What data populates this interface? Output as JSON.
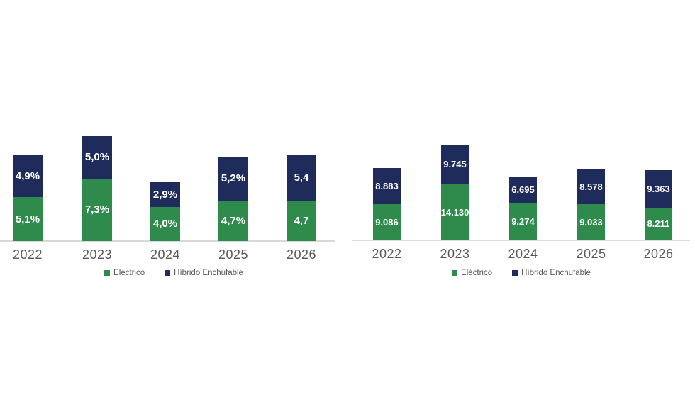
{
  "colors": {
    "electric_green": "#2E8B4C",
    "hybrid_navy": "#1F2C5B",
    "axis_line": "#D9D9D9",
    "axis_text": "#595959",
    "bar_label_text": "#FFFFFF"
  },
  "chart_data": [
    {
      "id": "left-percent-chart",
      "type": "bar",
      "stacked": true,
      "title": "",
      "categories": [
        "2022",
        "2023",
        "2024",
        "2025",
        "2026"
      ],
      "series": [
        {
          "name": "Eléctrico",
          "color": "#2E8B4C",
          "values": [
            5.1,
            7.3,
            4.0,
            4.7,
            4.7
          ],
          "data_labels": [
            "5,1%",
            "7,3%",
            "4,0%",
            "4,7%",
            "4,7"
          ]
        },
        {
          "name": "Híbrido Enchufable",
          "color": "#1F2C5B",
          "values": [
            4.9,
            5.0,
            2.9,
            5.2,
            5.4
          ],
          "data_labels": [
            "4,9%",
            "5,0%",
            "2,9%",
            "5,2%",
            "5,4"
          ]
        }
      ],
      "totals": [
        10.0,
        12.3,
        6.9,
        9.9,
        10.1
      ],
      "legend": {
        "position": "bottom",
        "labels": [
          "Eléctrico",
          "Híbrido Enchufable"
        ]
      },
      "axes": {
        "x_ticks": [
          "2022",
          "2023",
          "2024",
          "2025",
          "2026"
        ],
        "y_axis_visible": false,
        "gridlines": false,
        "ylim": [
          0,
          13
        ],
        "unit": "percent"
      }
    },
    {
      "id": "right-units-chart",
      "type": "bar",
      "stacked": true,
      "title": "",
      "categories": [
        "2022",
        "2023",
        "2024",
        "2025",
        "2026"
      ],
      "series": [
        {
          "name": "Eléctrico",
          "color": "#2E8B4C",
          "values": [
            9086,
            14130,
            9274,
            9033,
            8211
          ],
          "data_labels": [
            "9.086",
            "14.130",
            "9.274",
            "9.033",
            "8.211"
          ]
        },
        {
          "name": "Híbrido Enchufable",
          "color": "#1F2C5B",
          "values": [
            8883,
            9745,
            6695,
            8578,
            9363
          ],
          "data_labels": [
            "8.883",
            "9.745",
            "6.695",
            "8.578",
            "9.363"
          ]
        }
      ],
      "totals": [
        17969,
        23875,
        15969,
        17611,
        17574
      ],
      "legend": {
        "position": "bottom",
        "labels": [
          "Eléctrico",
          "Híbrido Enchufable"
        ]
      },
      "axes": {
        "x_ticks": [
          "2022",
          "2023",
          "2024",
          "2025",
          "2026"
        ],
        "y_axis_visible": false,
        "gridlines": false,
        "ylim": [
          0,
          25000
        ],
        "unit": "units"
      }
    }
  ]
}
